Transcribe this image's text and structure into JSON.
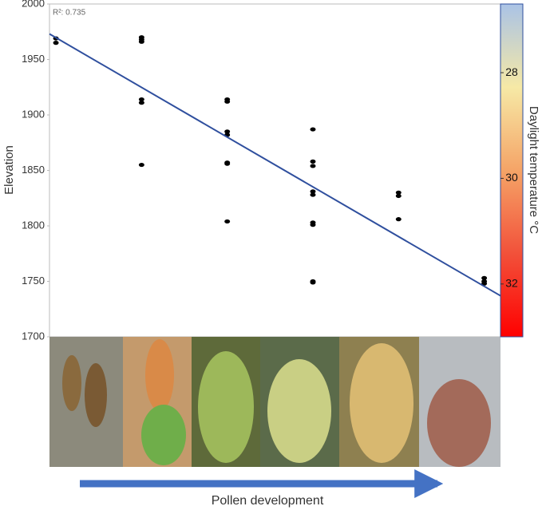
{
  "chart_data": {
    "type": "scatter",
    "y_label": "Elevation",
    "x_label": "Pollen development",
    "annotation": "R²: 0.735",
    "x": [
      1,
      1,
      2,
      2,
      2,
      2,
      2,
      2,
      3,
      3,
      3,
      3,
      3,
      3,
      3,
      4,
      4,
      4,
      4,
      4,
      4,
      4,
      4,
      4,
      5,
      5,
      5,
      6,
      6,
      6
    ],
    "values": [
      1969,
      1965,
      1970,
      1968,
      1966,
      1914,
      1911,
      1855,
      1914,
      1912,
      1885,
      1882,
      1857,
      1856,
      1804,
      1887,
      1858,
      1854,
      1831,
      1828,
      1803,
      1801,
      1750,
      1749,
      1830,
      1827,
      1806,
      1753,
      1750,
      1748
    ],
    "color": "#000000",
    "trendline": {
      "x": [
        0.925,
        6.19
      ],
      "values": [
        1973,
        1737
      ],
      "color": "#2f4f9e"
    },
    "xlim": [
      0.925,
      6.19
    ],
    "ylim": [
      1700,
      2000
    ],
    "yticks": [
      1700,
      1750,
      1800,
      1850,
      1900,
      1950,
      2000
    ],
    "colorbar": {
      "label": "Daylight temperature °C",
      "lim": [
        26.7,
        33
      ],
      "ticks": [
        28,
        30,
        32
      ],
      "colors": [
        "#aac3e6",
        "#f6e9a6",
        "#f5a467",
        "#f2513a",
        "#ff0000"
      ]
    }
  }
}
